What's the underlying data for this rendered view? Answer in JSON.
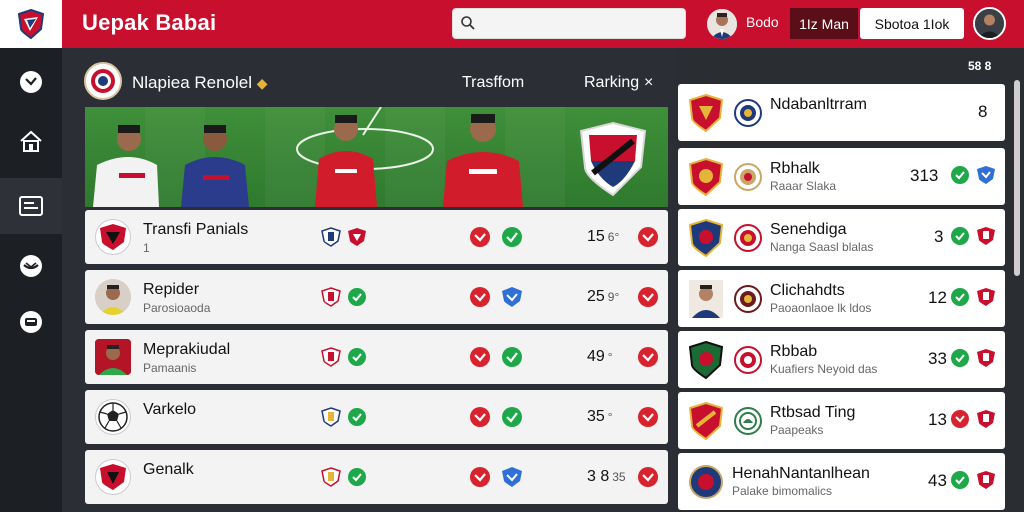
{
  "header": {
    "brand": "Uepak Babai",
    "search_placeholder": "",
    "link": "Bodo",
    "dark_button": "1Iz Man",
    "white_button": "Sbotoa 1Iok"
  },
  "main": {
    "title": "Nlapiea Renolel",
    "tab_transfers": "Trasffom",
    "tab_ranking": "Rarking",
    "close": "×",
    "rows": [
      {
        "name": "Transfi Panials",
        "sub": "1",
        "score": "15",
        "small": "6°"
      },
      {
        "name": "Repider",
        "sub": "Parosioaoda",
        "score": "25",
        "small": "9°"
      },
      {
        "name": "Meprakiudal",
        "sub": "Pamaanis",
        "score": "49",
        "small": "°"
      },
      {
        "name": "Varkelo",
        "sub": "",
        "score": "35",
        "small": "°"
      },
      {
        "name": "Genalk",
        "sub": "",
        "score": "3 8",
        "small": "35"
      }
    ]
  },
  "ranking": {
    "header": "58 8",
    "cards": [
      {
        "name": "Ndabanltrram",
        "sub": "",
        "value": "8"
      },
      {
        "name": "Rbhalk",
        "sub": "Raaar Slaka",
        "value": "313"
      },
      {
        "name": "Senehdiga",
        "sub": "Nanga Saasl blalas",
        "value": "3"
      },
      {
        "name": "Clichahdts",
        "sub": "Paoaonlaoe lk ldos",
        "value": "12"
      },
      {
        "name": "Rbbab",
        "sub": "Kuafiers Neyoid das",
        "value": "33"
      },
      {
        "name": "Rtbsad Ting",
        "sub": "Paapeaks",
        "value": "13"
      },
      {
        "name": "HenahNantanlhean",
        "sub": "Palake bimomalics",
        "value": "43"
      }
    ]
  },
  "colors": {
    "accent": "#c8102e",
    "sidebar": "#1c1f23",
    "green": "#1a9c3b"
  }
}
